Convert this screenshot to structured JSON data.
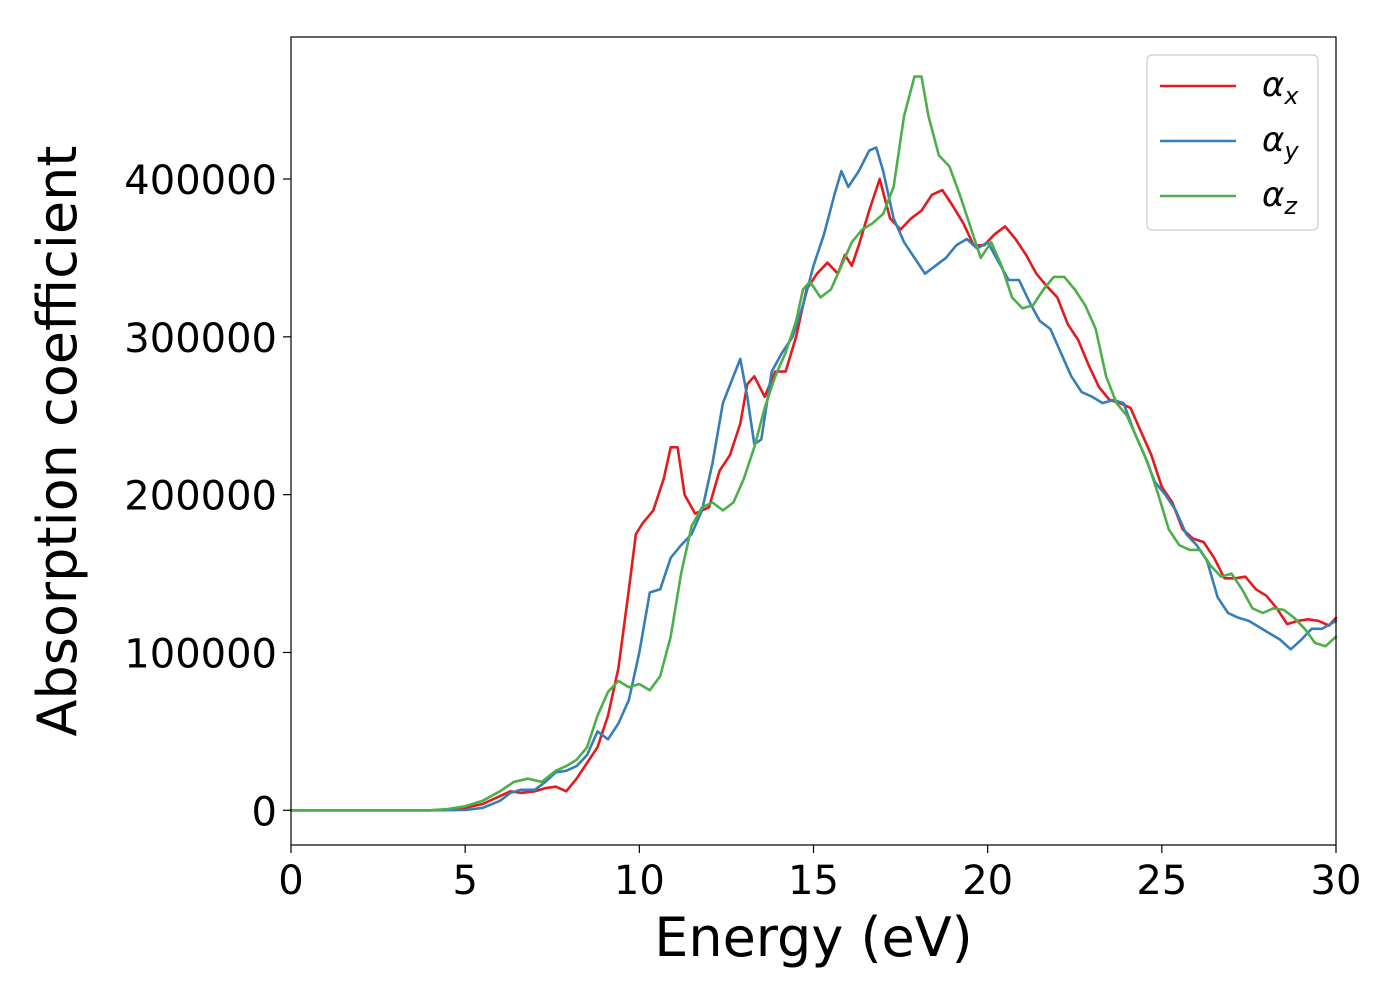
{
  "chart_data": {
    "type": "line",
    "title": "",
    "xlabel": "Energy (eV)",
    "ylabel": "Absorption coefficient",
    "xlim": [
      0,
      30
    ],
    "ylim": [
      -22000,
      490000
    ],
    "xticks": [
      0,
      5,
      10,
      15,
      20,
      25,
      30
    ],
    "yticks": [
      0,
      100000,
      200000,
      300000,
      400000
    ],
    "grid": false,
    "legend_position": "top-right",
    "series": [
      {
        "name": "α_x",
        "symbol": "α",
        "subscript": "x",
        "color": "#e41a1c",
        "x": [
          0,
          1,
          2,
          3,
          4,
          4.5,
          5,
          5.5,
          6,
          6.3,
          6.6,
          7,
          7.3,
          7.6,
          7.9,
          8.2,
          8.5,
          8.8,
          9.1,
          9.4,
          9.7,
          9.9,
          10.1,
          10.4,
          10.7,
          10.9,
          11.1,
          11.3,
          11.6,
          12,
          12.3,
          12.6,
          12.9,
          13.1,
          13.3,
          13.6,
          13.9,
          14.2,
          14.5,
          14.8,
          15.1,
          15.4,
          15.7,
          15.9,
          16.1,
          16.3,
          16.6,
          16.9,
          17.2,
          17.5,
          17.8,
          18.1,
          18.4,
          18.7,
          19,
          19.3,
          19.6,
          19.9,
          20.2,
          20.5,
          20.8,
          21.1,
          21.4,
          21.7,
          22,
          22.3,
          22.6,
          22.9,
          23.2,
          23.5,
          23.8,
          24.1,
          24.4,
          24.7,
          25,
          25.3,
          25.6,
          25.9,
          26.2,
          26.5,
          26.8,
          27.1,
          27.4,
          27.7,
          28,
          28.3,
          28.6,
          28.9,
          29.2,
          29.5,
          29.8,
          30
        ],
        "y": [
          0,
          0,
          0,
          0,
          0,
          500,
          1500,
          4000,
          9000,
          12000,
          11000,
          12000,
          14000,
          15000,
          12000,
          20000,
          30000,
          40000,
          60000,
          90000,
          140000,
          175000,
          182000,
          190000,
          210000,
          230000,
          230000,
          200000,
          188000,
          192000,
          215000,
          225000,
          245000,
          270000,
          275000,
          262000,
          278000,
          278000,
          300000,
          330000,
          340000,
          347000,
          340000,
          352000,
          345000,
          358000,
          380000,
          400000,
          375000,
          368000,
          375000,
          380000,
          390000,
          393000,
          383000,
          372000,
          358000,
          358000,
          365000,
          370000,
          362000,
          352000,
          340000,
          332000,
          325000,
          308000,
          298000,
          282000,
          268000,
          260000,
          258000,
          255000,
          240000,
          225000,
          205000,
          195000,
          178000,
          172000,
          170000,
          160000,
          147000,
          147000,
          148000,
          140000,
          136000,
          128000,
          118000,
          120000,
          121000,
          120000,
          117000,
          122000
        ]
      },
      {
        "name": "α_y",
        "symbol": "α",
        "subscript": "y",
        "color": "#377eb8",
        "x": [
          0,
          1,
          2,
          3,
          4,
          5,
          5.5,
          6,
          6.3,
          6.6,
          7,
          7.3,
          7.6,
          7.9,
          8.2,
          8.5,
          8.8,
          9.1,
          9.4,
          9.7,
          10,
          10.3,
          10.6,
          10.9,
          11.2,
          11.5,
          11.8,
          12.1,
          12.4,
          12.7,
          12.9,
          13.1,
          13.3,
          13.5,
          13.8,
          14.1,
          14.4,
          14.7,
          15,
          15.3,
          15.6,
          15.8,
          16,
          16.3,
          16.6,
          16.8,
          17,
          17.3,
          17.6,
          17.9,
          18.2,
          18.5,
          18.8,
          19.1,
          19.4,
          19.7,
          20,
          20.3,
          20.6,
          20.9,
          21.2,
          21.5,
          21.8,
          22.1,
          22.4,
          22.7,
          23,
          23.3,
          23.6,
          23.9,
          24.2,
          24.5,
          24.8,
          25.1,
          25.4,
          25.7,
          26,
          26.3,
          26.6,
          26.9,
          27.2,
          27.5,
          27.8,
          28.1,
          28.4,
          28.7,
          29,
          29.3,
          29.6,
          30
        ],
        "y": [
          0,
          0,
          0,
          0,
          0,
          200,
          1500,
          6000,
          11000,
          13000,
          13000,
          18000,
          24000,
          25000,
          28000,
          35000,
          50000,
          45000,
          55000,
          70000,
          100000,
          138000,
          140000,
          160000,
          168000,
          175000,
          190000,
          220000,
          258000,
          275000,
          286000,
          262000,
          232000,
          235000,
          278000,
          290000,
          300000,
          320000,
          345000,
          365000,
          390000,
          405000,
          395000,
          405000,
          418000,
          420000,
          405000,
          375000,
          360000,
          350000,
          340000,
          345000,
          350000,
          358000,
          362000,
          356000,
          360000,
          348000,
          336000,
          336000,
          322000,
          310000,
          305000,
          290000,
          275000,
          265000,
          262000,
          258000,
          260000,
          258000,
          240000,
          225000,
          208000,
          200000,
          190000,
          175000,
          168000,
          158000,
          135000,
          125000,
          122000,
          120000,
          116000,
          112000,
          108000,
          102000,
          108000,
          115000,
          115000,
          120000
        ]
      },
      {
        "name": "α_z",
        "symbol": "α",
        "subscript": "z",
        "color": "#4daf4a",
        "x": [
          0,
          1,
          2,
          3,
          4,
          4.5,
          5,
          5.5,
          6,
          6.4,
          6.8,
          7.2,
          7.6,
          7.9,
          8.2,
          8.5,
          8.8,
          9.1,
          9.4,
          9.7,
          10,
          10.3,
          10.6,
          10.9,
          11.2,
          11.5,
          11.8,
          12.1,
          12.4,
          12.7,
          13,
          13.3,
          13.6,
          13.9,
          14.2,
          14.5,
          14.7,
          14.9,
          15.2,
          15.5,
          15.8,
          16.1,
          16.4,
          16.7,
          17,
          17.3,
          17.6,
          17.9,
          18.1,
          18.3,
          18.6,
          18.9,
          19.2,
          19.5,
          19.8,
          20.1,
          20.4,
          20.7,
          21,
          21.3,
          21.6,
          21.9,
          22.2,
          22.5,
          22.8,
          23.1,
          23.4,
          23.7,
          24,
          24.3,
          24.6,
          24.9,
          25.2,
          25.5,
          25.8,
          26.1,
          26.4,
          26.7,
          27,
          27.3,
          27.6,
          27.9,
          28.2,
          28.5,
          28.8,
          29.1,
          29.4,
          29.7,
          30
        ],
        "y": [
          0,
          0,
          0,
          0,
          0,
          800,
          2500,
          6000,
          12000,
          18000,
          20000,
          18000,
          25000,
          28000,
          32000,
          40000,
          60000,
          75000,
          82000,
          78000,
          80000,
          76000,
          85000,
          110000,
          150000,
          180000,
          192000,
          195000,
          190000,
          195000,
          210000,
          230000,
          255000,
          275000,
          290000,
          310000,
          330000,
          335000,
          325000,
          330000,
          345000,
          360000,
          368000,
          372000,
          378000,
          395000,
          440000,
          465000,
          465000,
          440000,
          415000,
          408000,
          390000,
          370000,
          350000,
          360000,
          345000,
          325000,
          318000,
          320000,
          330000,
          338000,
          338000,
          330000,
          320000,
          305000,
          275000,
          258000,
          250000,
          235000,
          220000,
          200000,
          178000,
          168000,
          165000,
          165000,
          155000,
          148000,
          150000,
          140000,
          128000,
          125000,
          128000,
          127000,
          122000,
          115000,
          106000,
          104000,
          110000
        ]
      }
    ]
  }
}
